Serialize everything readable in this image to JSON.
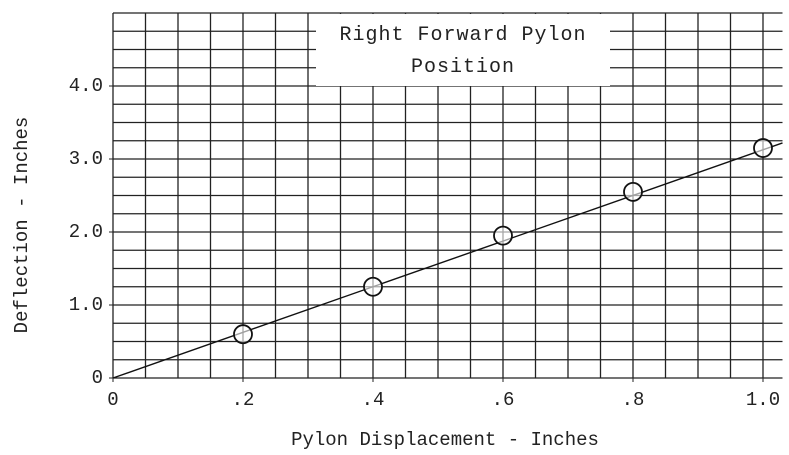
{
  "chart_data": {
    "type": "scatter",
    "title": "Right Forward Pylon Position",
    "x_label": "Pylon Displacement - Inches",
    "y_label": "Deflection - Inches",
    "series": [
      {
        "x": [
          0.2,
          0.4,
          0.6,
          0.8,
          1.0
        ],
        "values": [
          0.6,
          1.25,
          1.95,
          2.55,
          3.15
        ],
        "color": "#111111",
        "marker": "circle"
      },
      {
        "x": [
          0,
          1.03
        ],
        "values": [
          0,
          3.22
        ],
        "color": "#111111",
        "marker": "line"
      }
    ],
    "xlim": [
      0,
      1.03
    ],
    "ylim": [
      0,
      5.0
    ],
    "xticks": [
      0,
      {
        "value": 0.2,
        "label": ".2"
      },
      {
        "value": 0.4,
        "label": ".4"
      },
      {
        "value": 0.6,
        "label": ".6"
      },
      {
        "value": 0.8,
        "label": ".8"
      },
      {
        "value": 1.0,
        "label": "1.0"
      }
    ],
    "yticks": [
      0,
      {
        "value": 1.0,
        "label": "1.0"
      },
      {
        "value": 2.0,
        "label": "2.0"
      },
      {
        "value": 3.0,
        "label": "3.0"
      },
      {
        "value": 4.0,
        "label": "4.0"
      }
    ],
    "grid": true,
    "x_minor_step": 0.05,
    "y_minor_step": 0.25
  }
}
